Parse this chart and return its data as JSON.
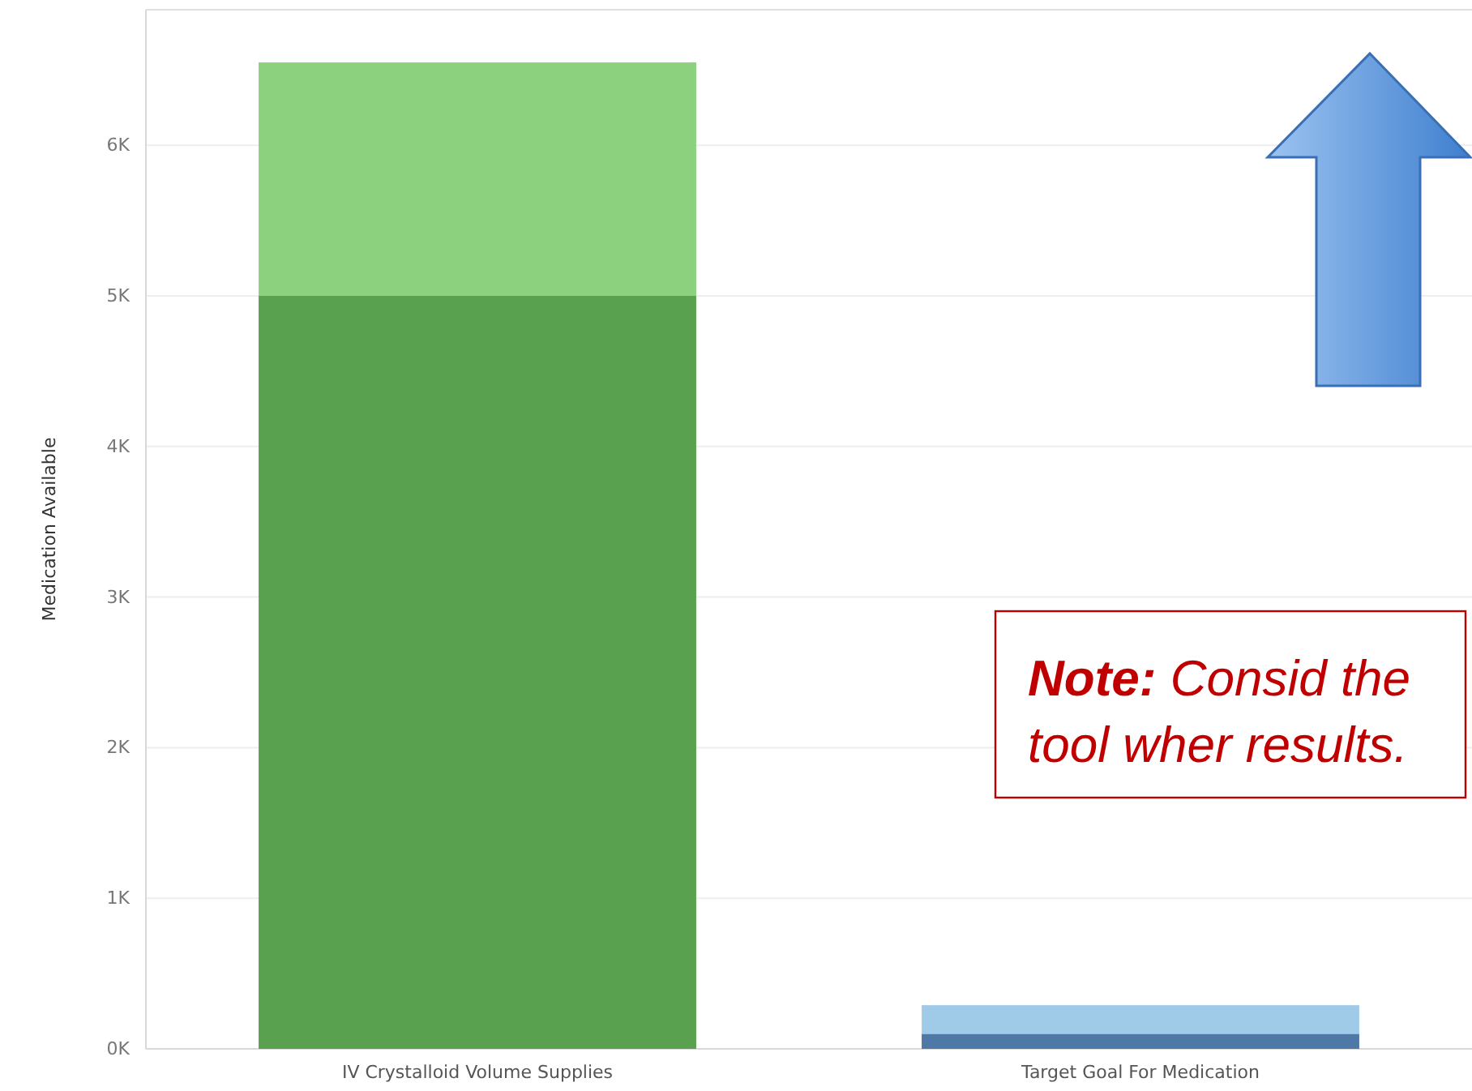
{
  "chart_data": {
    "type": "bar",
    "stacked": true,
    "ylabel": "Medication Available",
    "categories": [
      "IV Crystalloid Volume Supplies",
      "Target Goal For Medication"
    ],
    "series": [
      {
        "colors": [
          "#59a14f",
          "#4e79a7"
        ],
        "values": [
          5000,
          100
        ]
      },
      {
        "colors": [
          "#8cd17d",
          "#a0cbe8"
        ],
        "values": [
          1550,
          190
        ]
      }
    ],
    "ylim": [
      0,
      6900
    ],
    "yticks": [
      {
        "value": 0,
        "label": "0K"
      },
      {
        "value": 1000,
        "label": "1K"
      },
      {
        "value": 2000,
        "label": "2K"
      },
      {
        "value": 3000,
        "label": "3K"
      },
      {
        "value": 4000,
        "label": "4K"
      },
      {
        "value": 5000,
        "label": "5K"
      },
      {
        "value": 6000,
        "label": "6K"
      }
    ],
    "grid": "y",
    "annotations": [
      "Note: Consid the tool wher results."
    ]
  }
}
